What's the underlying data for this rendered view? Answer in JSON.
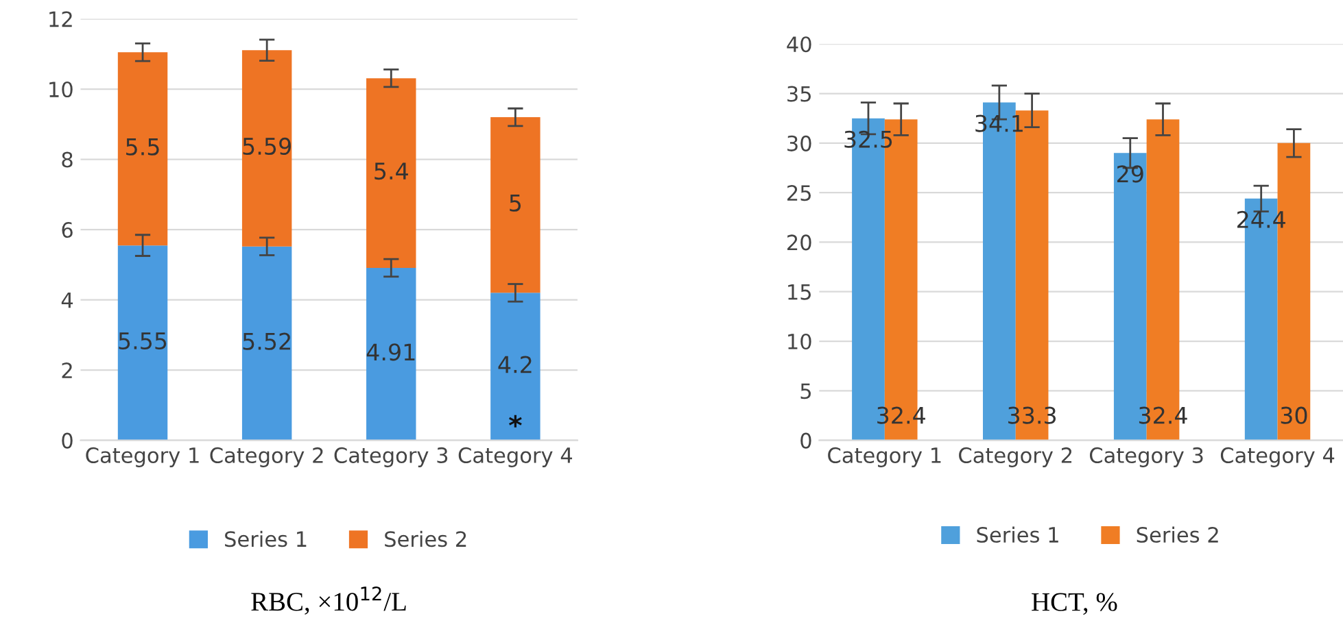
{
  "chart_data": [
    {
      "type": "bar",
      "title": "RBC, ×10$^{12}$/L",
      "categories": [
        "Category 1",
        "Category 2",
        "Category 3",
        "Category 4"
      ],
      "stacked": true,
      "series": [
        {
          "name": "Series 1",
          "color": "#4a9be0",
          "values": [
            5.55,
            5.52,
            4.91,
            4.2
          ],
          "errors": [
            0.3,
            0.25,
            0.25,
            0.25
          ]
        },
        {
          "name": "Series 2",
          "color": "#ee7424",
          "values": [
            5.5,
            5.59,
            5.4,
            5
          ],
          "errors": [
            0.25,
            0.3,
            0.25,
            0.25
          ]
        }
      ],
      "ylim": [
        0,
        12
      ],
      "yticks": [
        0,
        2,
        4,
        6,
        8,
        10,
        12
      ],
      "grid": "y",
      "legend": "bottom",
      "data_labels": true,
      "annotations": [
        {
          "text": "*",
          "x": "Category 4",
          "y": 0
        }
      ]
    },
    {
      "type": "bar",
      "title": "HCT, %",
      "categories": [
        "Category 1",
        "Category 2",
        "Category 3",
        "Category 4"
      ],
      "series": [
        {
          "name": "Series 1",
          "color": "#4fa0dc",
          "values": [
            32.5,
            34.1,
            29,
            24.4
          ],
          "errors": [
            1.6,
            1.7,
            1.5,
            1.3
          ]
        },
        {
          "name": "Series 2",
          "color": "#f07d24",
          "values": [
            32.4,
            33.3,
            32.4,
            30
          ],
          "errors": [
            1.6,
            1.7,
            1.6,
            1.4
          ]
        }
      ],
      "ylim": [
        0,
        40
      ],
      "yticks": [
        0,
        5,
        10,
        15,
        20,
        25,
        30,
        35,
        40
      ],
      "grid": "y",
      "legend": "bottom",
      "data_labels": true
    }
  ]
}
